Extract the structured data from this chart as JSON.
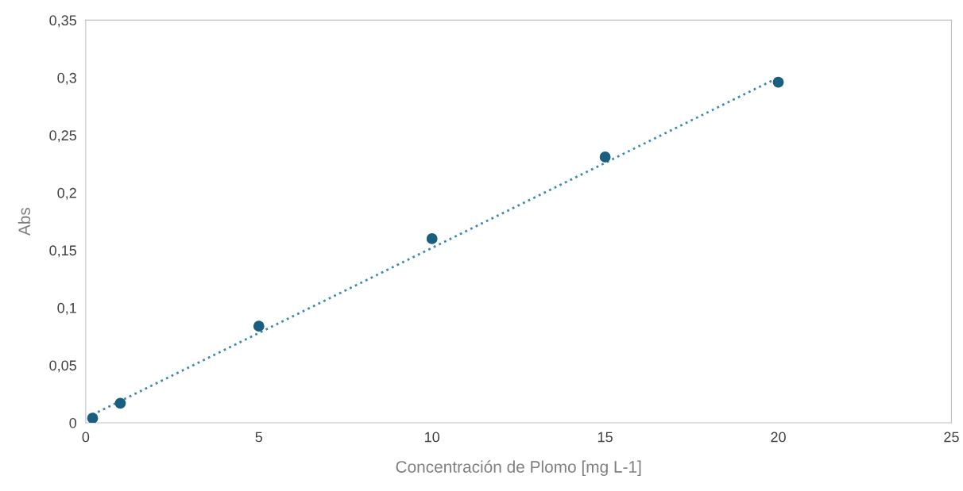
{
  "chart_data": {
    "type": "scatter",
    "xlabel": "Concentración de Plomo [mg L-1]",
    "ylabel": "Abs",
    "xlim": [
      0,
      25
    ],
    "xticks": [
      0,
      5,
      10,
      15,
      20,
      25
    ],
    "ylim": [
      0,
      0.35
    ],
    "yticks": [
      0,
      {
        "value": 0.05,
        "label": "0,05"
      },
      {
        "value": 0.1,
        "label": "0,1"
      },
      {
        "value": 0.15,
        "label": "0,15"
      },
      {
        "value": 0.2,
        "label": "0,2"
      },
      {
        "value": 0.25,
        "label": "0,25"
      },
      {
        "value": 0.3,
        "label": "0,3"
      },
      {
        "value": 0.35,
        "label": "0,35"
      }
    ],
    "grid": false,
    "marker": "circle",
    "series": [
      {
        "color": "#1a5e80",
        "x": [
          0.2,
          1,
          5,
          10,
          15,
          20
        ],
        "values": [
          0.004,
          0.017,
          0.084,
          0.16,
          0.231,
          0.296
        ]
      },
      {
        "type": "line",
        "color": "#3d8ab5",
        "line_style": "dotted",
        "marker": "none",
        "x": [
          0.2,
          20
        ],
        "values": [
          0.007,
          0.3
        ]
      }
    ]
  }
}
